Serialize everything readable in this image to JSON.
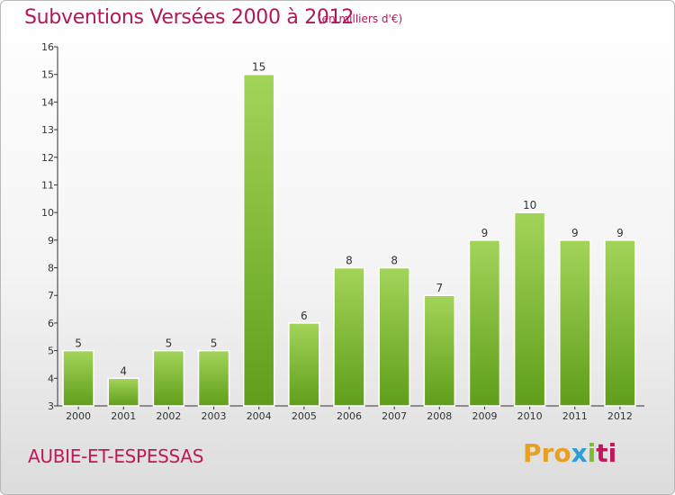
{
  "header": {
    "title": "Subventions Versées 2000 à 2012",
    "subtitle": "(en milliers d'€)"
  },
  "footer": {
    "commune": "AUBIE-ET-ESPESSAS",
    "logo": [
      "Pro",
      "x",
      "i",
      "ti"
    ]
  },
  "colors": {
    "title": "#b0185a",
    "bar_top": "#a3d45a",
    "bar_bottom": "#5f9e1a",
    "axis": "#333333"
  },
  "chart_data": {
    "type": "bar",
    "title": "Subventions Versées 2000 à 2012",
    "subtitle": "(en milliers d'€)",
    "xlabel": "",
    "ylabel": "",
    "categories": [
      "2000",
      "2001",
      "2002",
      "2003",
      "2004",
      "2005",
      "2006",
      "2007",
      "2008",
      "2009",
      "2010",
      "2011",
      "2012"
    ],
    "values": [
      5,
      4,
      5,
      5,
      15,
      6,
      8,
      8,
      7,
      9,
      10,
      9,
      9
    ],
    "ylim": [
      3,
      16
    ],
    "yticks": [
      3,
      4,
      5,
      6,
      7,
      8,
      9,
      10,
      11,
      12,
      13,
      14,
      15,
      16
    ],
    "grid": false,
    "data_labels": true
  }
}
